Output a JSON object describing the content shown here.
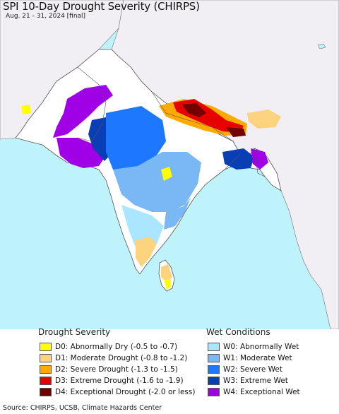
{
  "title": "SPI 10-Day Drought Severity (CHIRPS)",
  "subtitle": "Aug. 21 - 31, 2024 [final]",
  "colors": {
    "ocean": "#bff3fb",
    "land_outside": "#f1eef4",
    "no_change": "#ffffff",
    "border": "#555555"
  },
  "legend": {
    "drought": {
      "heading": "Drought Severity",
      "items": [
        {
          "label": "D0: Abnormally Dry (-0.5 to -0.7)",
          "color": "#ffff00"
        },
        {
          "label": "D1: Moderate Drought (-0.8 to -1.2)",
          "color": "#fcd37f"
        },
        {
          "label": "D2: Severe Drought (-1.3 to -1.5)",
          "color": "#ffaa00"
        },
        {
          "label": "D3: Extreme Drought (-1.6 to -1.9)",
          "color": "#e60000"
        },
        {
          "label": "D4: Exceptional Drought (-2.0 or less)",
          "color": "#730000"
        }
      ]
    },
    "wet": {
      "heading": "Wet Conditions",
      "items": [
        {
          "label": "W0: Abnormally Wet",
          "color": "#aae6ff"
        },
        {
          "label": "W1: Moderate Wet",
          "color": "#7ab8f5"
        },
        {
          "label": "W2: Severe Wet",
          "color": "#1e78ff"
        },
        {
          "label": "W3: Extreme Wet",
          "color": "#0a3eb4"
        },
        {
          "label": "W4: Exceptional Wet",
          "color": "#a000e6"
        }
      ]
    }
  },
  "source": "Source: CHIRPS, UCSB, Climate Hazards Center"
}
